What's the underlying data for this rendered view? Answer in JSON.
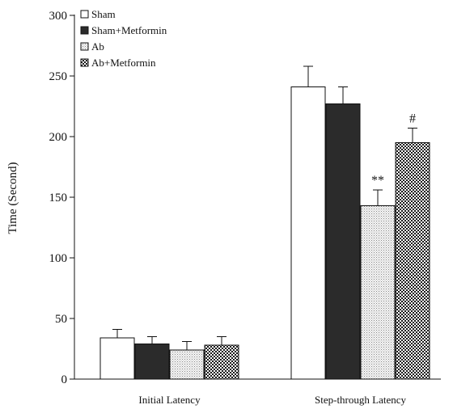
{
  "chart_data": {
    "type": "bar",
    "categories": [
      "Initial Latency",
      "Step-through Latency"
    ],
    "ylabel": "Time (Second)",
    "xlabel": "",
    "ylim": [
      0,
      300
    ],
    "yticks": [
      0,
      50,
      100,
      150,
      200,
      250,
      300
    ],
    "legend_position": "top-left",
    "grid": false,
    "series": [
      {
        "name": "Sham",
        "values": [
          34,
          241
        ],
        "errors": [
          7,
          17
        ],
        "fill": "white"
      },
      {
        "name": "Sham+Metformin",
        "values": [
          29,
          227
        ],
        "errors": [
          6,
          14
        ],
        "fill": "black"
      },
      {
        "name": "Ab",
        "values": [
          24,
          143
        ],
        "errors": [
          7,
          13
        ],
        "fill": "dotted"
      },
      {
        "name": "Ab+Metformin",
        "values": [
          28,
          195
        ],
        "errors": [
          7,
          12
        ],
        "fill": "checkered"
      }
    ],
    "annotations": [
      {
        "category": 1,
        "series": 2,
        "text": "**"
      },
      {
        "category": 1,
        "series": 3,
        "text": "#"
      }
    ]
  }
}
